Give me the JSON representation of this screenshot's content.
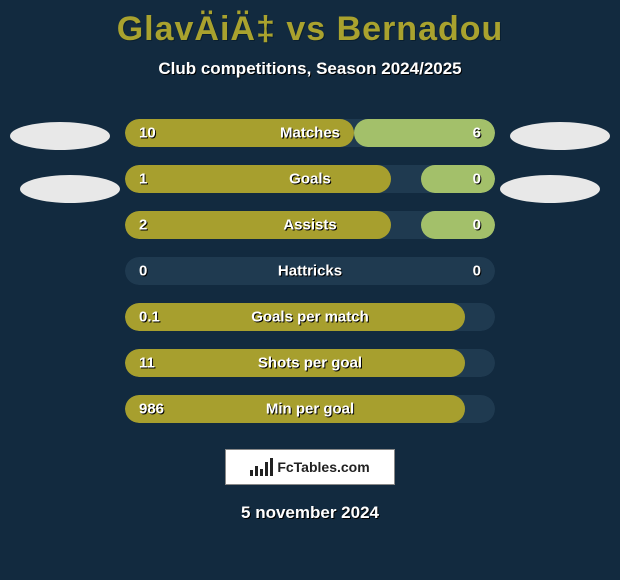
{
  "title": "GlavÄiÄ‡ vs Bernadou",
  "subtitle": "Club competitions, Season 2024/2025",
  "date": "5 november 2024",
  "logo_text": "FcTables.com",
  "colors": {
    "background": "#122a3f",
    "accent": "#a9a22e",
    "left_bar": "#a79f2e",
    "right_bar": "#a79f2e",
    "track": "#1f3a50",
    "text": "#ffffff",
    "bubble": "#e8e8e8"
  },
  "rows": [
    {
      "label": "Matches",
      "left_val": "10",
      "right_val": "6",
      "left_pct": 62,
      "right_pct": 38,
      "left_color": "#a79f2e",
      "right_color": "#a3c06a"
    },
    {
      "label": "Goals",
      "left_val": "1",
      "right_val": "0",
      "left_pct": 72,
      "right_pct": 20,
      "left_color": "#a79f2e",
      "right_color": "#a3c06a"
    },
    {
      "label": "Assists",
      "left_val": "2",
      "right_val": "0",
      "left_pct": 72,
      "right_pct": 20,
      "left_color": "#a79f2e",
      "right_color": "#a3c06a"
    },
    {
      "label": "Hattricks",
      "left_val": "0",
      "right_val": "0",
      "left_pct": 0,
      "right_pct": 0,
      "left_color": "#a79f2e",
      "right_color": "#a3c06a"
    },
    {
      "label": "Goals per match",
      "left_val": "0.1",
      "right_val": "",
      "left_pct": 92,
      "right_pct": 0,
      "left_color": "#a79f2e",
      "right_color": "#a3c06a"
    },
    {
      "label": "Shots per goal",
      "left_val": "11",
      "right_val": "",
      "left_pct": 92,
      "right_pct": 0,
      "left_color": "#a79f2e",
      "right_color": "#a3c06a"
    },
    {
      "label": "Min per goal",
      "left_val": "986",
      "right_val": "",
      "left_pct": 92,
      "right_pct": 0,
      "left_color": "#a79f2e",
      "right_color": "#a3c06a"
    }
  ],
  "logo_bar_heights": [
    6,
    10,
    7,
    14,
    18
  ]
}
